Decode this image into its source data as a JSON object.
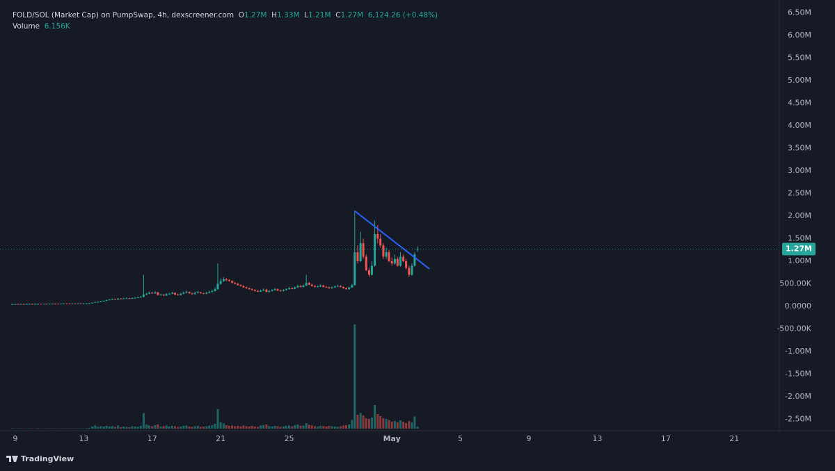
{
  "chart_data": {
    "type": "candlestick",
    "header": {
      "title": "FOLD/SOL (Market Cap) on PumpSwap, 4h, dexscreener.com",
      "ohlc": [
        {
          "key": "O",
          "value": "1.27M"
        },
        {
          "key": "H",
          "value": "1.33M"
        },
        {
          "key": "L",
          "value": "1.21M"
        },
        {
          "key": "C",
          "value": "1.27M"
        }
      ],
      "change": "6,124.26 (+0.48%)",
      "volume_key": "Volume",
      "volume_value": "6.156K"
    },
    "up_color": "#26a69a",
    "down_color": "#ef5350",
    "grid": true,
    "x": [
      8.83,
      9,
      9.17,
      9.33,
      9.5,
      9.67,
      9.83,
      10,
      10.17,
      10.33,
      10.5,
      10.67,
      10.83,
      11,
      11.17,
      11.33,
      11.5,
      11.67,
      11.83,
      12,
      12.17,
      12.33,
      12.5,
      12.67,
      12.83,
      13,
      13.17,
      13.33,
      13.5,
      13.67,
      13.83,
      14,
      14.17,
      14.33,
      14.5,
      14.67,
      14.83,
      15,
      15.17,
      15.33,
      15.5,
      15.67,
      15.83,
      16,
      16.17,
      16.33,
      16.5,
      16.67,
      16.83,
      17,
      17.17,
      17.33,
      17.5,
      17.67,
      17.83,
      18,
      18.17,
      18.33,
      18.5,
      18.67,
      18.83,
      19,
      19.17,
      19.33,
      19.5,
      19.67,
      19.83,
      20,
      20.17,
      20.33,
      20.5,
      20.67,
      20.83,
      21,
      21.17,
      21.33,
      21.5,
      21.67,
      21.83,
      22,
      22.17,
      22.33,
      22.5,
      22.67,
      22.83,
      23,
      23.17,
      23.33,
      23.5,
      23.67,
      23.83,
      24,
      24.17,
      24.33,
      24.5,
      24.67,
      24.83,
      25,
      25.17,
      25.33,
      25.5,
      25.67,
      25.83,
      26,
      26.17,
      26.33,
      26.5,
      26.67,
      26.83,
      27,
      27.17,
      27.33,
      27.5,
      27.67,
      27.83,
      28,
      28.17,
      28.33,
      28.5,
      28.67,
      28.83,
      29,
      29.17,
      29.33,
      29.5,
      29.67,
      29.83,
      30,
      30.17,
      30.33,
      30.5,
      30.67,
      30.83,
      31,
      31.17,
      31.33,
      31.5,
      31.67,
      31.83,
      32,
      32.17,
      32.33,
      32.5
    ],
    "open": [
      50000,
      50000,
      52000,
      51000,
      53000,
      52000,
      54000,
      55000,
      53000,
      54000,
      56000,
      55000,
      57000,
      56000,
      58000,
      60000,
      59000,
      58000,
      60000,
      62000,
      61000,
      60000,
      63000,
      62000,
      64000,
      63000,
      65000,
      66000,
      70000,
      80000,
      95000,
      100000,
      110000,
      120000,
      140000,
      150000,
      160000,
      150000,
      170000,
      165000,
      175000,
      180000,
      170000,
      185000,
      190000,
      200000,
      210000,
      260000,
      280000,
      300000,
      290000,
      310000,
      250000,
      260000,
      240000,
      270000,
      280000,
      300000,
      260000,
      250000,
      280000,
      300000,
      320000,
      290000,
      270000,
      300000,
      310000,
      290000,
      280000,
      300000,
      320000,
      340000,
      380000,
      500000,
      560000,
      600000,
      580000,
      560000,
      520000,
      500000,
      470000,
      450000,
      420000,
      400000,
      380000,
      360000,
      340000,
      330000,
      350000,
      370000,
      320000,
      340000,
      360000,
      380000,
      350000,
      340000,
      360000,
      380000,
      400000,
      390000,
      420000,
      450000,
      430000,
      460000,
      520000,
      480000,
      450000,
      430000,
      440000,
      460000,
      430000,
      420000,
      400000,
      420000,
      440000,
      450000,
      430000,
      400000,
      380000,
      420000,
      470000,
      1200000,
      1000000,
      1400000,
      1100000,
      800000,
      700000,
      900000,
      1600000,
      1500000,
      1350000,
      1100000,
      1200000,
      1000000,
      950000,
      1050000,
      900000,
      1100000,
      1000000,
      850000,
      700000,
      900000,
      1270000
    ],
    "high": [
      53000,
      55000,
      55000,
      56000,
      56000,
      57000,
      58000,
      58000,
      57000,
      59000,
      59000,
      60000,
      60000,
      61000,
      63000,
      63000,
      62000,
      63000,
      65000,
      65000,
      64000,
      66000,
      66000,
      67000,
      67000,
      68000,
      69000,
      74000,
      85000,
      100000,
      110000,
      120000,
      130000,
      150000,
      160000,
      175000,
      170000,
      185000,
      180000,
      190000,
      195000,
      190000,
      200000,
      205000,
      215000,
      230000,
      700000,
      300000,
      330000,
      320000,
      340000,
      320000,
      280000,
      270000,
      290000,
      300000,
      320000,
      310000,
      280000,
      300000,
      330000,
      350000,
      330000,
      300000,
      320000,
      340000,
      320000,
      300000,
      320000,
      350000,
      370000,
      420000,
      950000,
      620000,
      650000,
      630000,
      600000,
      580000,
      540000,
      520000,
      490000,
      470000,
      440000,
      420000,
      400000,
      380000,
      360000,
      370000,
      400000,
      390000,
      360000,
      380000,
      410000,
      400000,
      370000,
      380000,
      400000,
      430000,
      420000,
      440000,
      480000,
      470000,
      490000,
      700000,
      540000,
      500000,
      470000,
      460000,
      490000,
      480000,
      450000,
      440000,
      440000,
      460000,
      480000,
      470000,
      440000,
      420000,
      440000,
      500000,
      2120000,
      1350000,
      1650000,
      1500000,
      1150000,
      850000,
      1000000,
      1900000,
      1800000,
      1600000,
      1400000,
      1300000,
      1250000,
      1080000,
      1150000,
      1100000,
      1200000,
      1150000,
      1050000,
      900000,
      950000,
      1200000,
      1330000
    ],
    "low": [
      47000,
      48000,
      49000,
      49000,
      50000,
      50000,
      52000,
      51000,
      51000,
      52000,
      53000,
      53000,
      54000,
      54000,
      56000,
      57000,
      56000,
      56000,
      58000,
      59000,
      58000,
      59000,
      60000,
      60000,
      61000,
      61000,
      63000,
      64000,
      68000,
      77000,
      92000,
      97000,
      107000,
      115000,
      135000,
      145000,
      145000,
      145000,
      160000,
      160000,
      170000,
      165000,
      165000,
      180000,
      185000,
      195000,
      200000,
      250000,
      270000,
      280000,
      280000,
      240000,
      240000,
      230000,
      230000,
      260000,
      270000,
      250000,
      240000,
      240000,
      270000,
      290000,
      280000,
      260000,
      260000,
      290000,
      280000,
      270000,
      270000,
      290000,
      310000,
      330000,
      370000,
      480000,
      540000,
      560000,
      550000,
      510000,
      490000,
      460000,
      440000,
      410000,
      390000,
      370000,
      350000,
      330000,
      320000,
      320000,
      340000,
      310000,
      310000,
      330000,
      350000,
      340000,
      330000,
      330000,
      350000,
      370000,
      380000,
      380000,
      410000,
      420000,
      420000,
      450000,
      470000,
      440000,
      420000,
      420000,
      430000,
      420000,
      410000,
      390000,
      390000,
      410000,
      430000,
      420000,
      390000,
      370000,
      370000,
      410000,
      460000,
      950000,
      980000,
      1050000,
      780000,
      650000,
      680000,
      880000,
      1400000,
      1300000,
      1050000,
      1050000,
      980000,
      900000,
      920000,
      880000,
      880000,
      980000,
      820000,
      650000,
      680000,
      880000,
      1210000
    ],
    "close": [
      50000,
      52000,
      51000,
      53000,
      52000,
      54000,
      55000,
      53000,
      54000,
      56000,
      55000,
      57000,
      56000,
      58000,
      60000,
      59000,
      58000,
      60000,
      62000,
      61000,
      60000,
      63000,
      62000,
      64000,
      63000,
      65000,
      66000,
      70000,
      80000,
      95000,
      100000,
      110000,
      120000,
      140000,
      150000,
      160000,
      150000,
      170000,
      165000,
      175000,
      180000,
      170000,
      185000,
      190000,
      200000,
      210000,
      260000,
      280000,
      300000,
      290000,
      310000,
      250000,
      260000,
      240000,
      270000,
      280000,
      300000,
      260000,
      250000,
      280000,
      300000,
      320000,
      290000,
      270000,
      300000,
      310000,
      290000,
      280000,
      300000,
      320000,
      340000,
      380000,
      500000,
      560000,
      600000,
      580000,
      560000,
      520000,
      500000,
      470000,
      450000,
      420000,
      400000,
      380000,
      360000,
      340000,
      330000,
      350000,
      370000,
      320000,
      340000,
      360000,
      380000,
      350000,
      340000,
      360000,
      380000,
      400000,
      390000,
      420000,
      450000,
      430000,
      460000,
      520000,
      480000,
      450000,
      430000,
      440000,
      460000,
      430000,
      420000,
      400000,
      420000,
      440000,
      450000,
      430000,
      400000,
      380000,
      420000,
      470000,
      1200000,
      1000000,
      1400000,
      1100000,
      800000,
      700000,
      900000,
      1600000,
      1500000,
      1350000,
      1100000,
      1200000,
      1000000,
      950000,
      1050000,
      900000,
      1100000,
      1000000,
      850000,
      700000,
      900000,
      1150000,
      1270000
    ],
    "volume": [
      1200,
      800,
      900,
      1100,
      700,
      600,
      900,
      800,
      700,
      1000,
      800,
      600,
      900,
      700,
      800,
      1000,
      700,
      600,
      900,
      800,
      700,
      1000,
      900,
      800,
      700,
      900,
      1100,
      2500,
      6000,
      9000,
      5000,
      7000,
      6000,
      8000,
      6000,
      7000,
      5000,
      9000,
      4000,
      6000,
      5000,
      4000,
      7000,
      6000,
      5000,
      8000,
      45000,
      12000,
      9000,
      7000,
      10000,
      12000,
      6000,
      7000,
      9000,
      6000,
      8000,
      7000,
      5000,
      6000,
      8000,
      9000,
      6000,
      5000,
      7000,
      8000,
      5000,
      6000,
      7000,
      9000,
      10000,
      14000,
      56000,
      18000,
      15000,
      10000,
      8000,
      9000,
      7000,
      8000,
      6000,
      9000,
      7000,
      6000,
      8000,
      6000,
      5000,
      9000,
      10000,
      12000,
      7000,
      6000,
      8000,
      7000,
      5000,
      6000,
      8000,
      9000,
      7000,
      10000,
      12000,
      8000,
      9000,
      16000,
      11000,
      9000,
      7000,
      6000,
      8000,
      7000,
      6000,
      8000,
      7000,
      6000,
      5000,
      7000,
      9000,
      10000,
      12000,
      25000,
      300000,
      40000,
      45000,
      38000,
      30000,
      28000,
      32000,
      68000,
      42000,
      36000,
      30000,
      28000,
      25000,
      20000,
      22000,
      18000,
      24000,
      20000,
      16000,
      22000,
      18000,
      35000,
      6156
    ],
    "trendline": {
      "x": [
        28.84,
        33.19
      ],
      "y": [
        2110000,
        830000
      ],
      "color": "#2962ff"
    },
    "last_price": {
      "value": 1270000,
      "label": "1.27M"
    },
    "xlim": [
      8.11,
      53.63
    ],
    "xticks": [
      9,
      13,
      17,
      21,
      25,
      {
        "value": 31,
        "label": "May"
      },
      {
        "value": 35,
        "label": "5"
      },
      {
        "value": 39,
        "label": "9"
      },
      {
        "value": 43,
        "label": "13"
      },
      {
        "value": 47,
        "label": "17"
      },
      {
        "value": 51,
        "label": "21"
      }
    ],
    "ylim": [
      -2708000,
      6785000
    ],
    "yticks": [
      {
        "value": 6500000,
        "label": "6.50M"
      },
      {
        "value": 6000000,
        "label": "6.00M"
      },
      {
        "value": 5500000,
        "label": "5.50M"
      },
      {
        "value": 5000000,
        "label": "5.00M"
      },
      {
        "value": 4500000,
        "label": "4.50M"
      },
      {
        "value": 4000000,
        "label": "4.00M"
      },
      {
        "value": 3500000,
        "label": "3.50M"
      },
      {
        "value": 3000000,
        "label": "3.00M"
      },
      {
        "value": 2500000,
        "label": "2.50M"
      },
      {
        "value": 2000000,
        "label": "2.00M"
      },
      {
        "value": 1500000,
        "label": "1.50M"
      },
      {
        "value": 1000000,
        "label": "1.00M"
      },
      {
        "value": 500000,
        "label": "500.00K"
      },
      {
        "value": 0,
        "label": "0.0000"
      },
      {
        "value": -500000,
        "label": "-500.00K"
      },
      {
        "value": -1000000,
        "label": "-1.00M"
      },
      {
        "value": -1500000,
        "label": "-1.50M"
      },
      {
        "value": -2000000,
        "label": "-2.00M"
      },
      {
        "value": -2500000,
        "label": "-2.50M"
      }
    ]
  },
  "footer": {
    "brand": "TradingView"
  }
}
